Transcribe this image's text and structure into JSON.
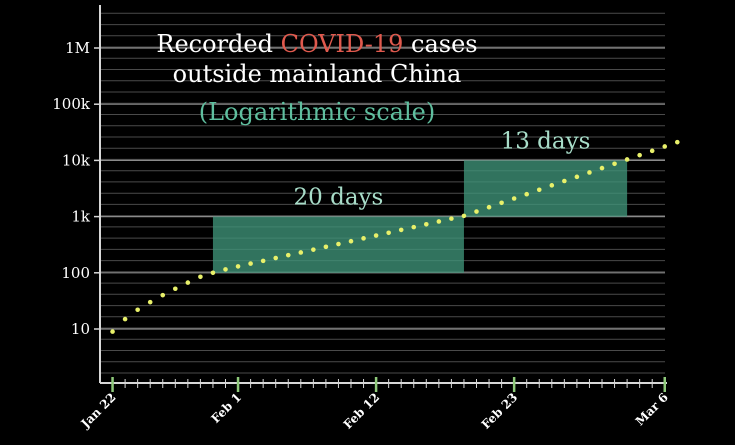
{
  "chart_data": {
    "type": "scatter",
    "title_parts": [
      {
        "text": "Recorded ",
        "color": "#ffffff",
        "line": 1
      },
      {
        "text": "COVID-19",
        "color": "#e05a4e",
        "line": 1
      },
      {
        "text": " cases",
        "color": "#ffffff",
        "line": 1
      },
      {
        "text": "outside mainland China",
        "color": "#ffffff",
        "line": 2
      },
      {
        "text": "(Logarithmic scale)",
        "color": "#5fbf9f",
        "line": 3
      }
    ],
    "y_scale": "log",
    "y_ticks": [
      {
        "value": 10,
        "label": "10"
      },
      {
        "value": 100,
        "label": "100"
      },
      {
        "value": 1000,
        "label": "1k"
      },
      {
        "value": 10000,
        "label": "10k"
      },
      {
        "value": 100000,
        "label": "100k"
      },
      {
        "value": 1000000,
        "label": "1M"
      }
    ],
    "x_date_ticks": [
      "Jan 22",
      "Feb 1",
      "Feb 12",
      "Feb 23",
      "Mar 6"
    ],
    "x_range": [
      "Jan 21",
      "Mar 6"
    ],
    "grid": true,
    "series": [
      {
        "color": "#e8f06a",
        "points": [
          [
            "Jan 22",
            9
          ],
          [
            "Jan 23",
            15
          ],
          [
            "Jan 24",
            22
          ],
          [
            "Jan 25",
            30
          ],
          [
            "Jan 26",
            40
          ],
          [
            "Jan 27",
            52
          ],
          [
            "Jan 28",
            67
          ],
          [
            "Jan 29",
            85
          ],
          [
            "Jan 30",
            100
          ],
          [
            "Jan 31",
            115
          ],
          [
            "Feb 1",
            130
          ],
          [
            "Feb 2",
            146
          ],
          [
            "Feb 3",
            163
          ],
          [
            "Feb 4",
            183
          ],
          [
            "Feb 5",
            206
          ],
          [
            "Feb 6",
            230
          ],
          [
            "Feb 7",
            258
          ],
          [
            "Feb 8",
            290
          ],
          [
            "Feb 9",
            325
          ],
          [
            "Feb 10",
            365
          ],
          [
            "Feb 11",
            410
          ],
          [
            "Feb 12",
            460
          ],
          [
            "Feb 13",
            515
          ],
          [
            "Feb 14",
            580
          ],
          [
            "Feb 15",
            650
          ],
          [
            "Feb 16",
            730
          ],
          [
            "Feb 17",
            820
          ],
          [
            "Feb 18",
            920
          ],
          [
            "Feb 19",
            1030
          ],
          [
            "Feb 20",
            1230
          ],
          [
            "Feb 21",
            1470
          ],
          [
            "Feb 22",
            1760
          ],
          [
            "Feb 23",
            2100
          ],
          [
            "Feb 24",
            2500
          ],
          [
            "Feb 25",
            3000
          ],
          [
            "Feb 26",
            3600
          ],
          [
            "Feb 27",
            4300
          ],
          [
            "Feb 28",
            5100
          ],
          [
            "Feb 29",
            6100
          ],
          [
            "Mar 1",
            7300
          ],
          [
            "Mar 2",
            8700
          ],
          [
            "Mar 3",
            10400
          ],
          [
            "Mar 4",
            12400
          ],
          [
            "Mar 5",
            14800
          ],
          [
            "Mar 6",
            17700
          ],
          [
            "Mar 7",
            21100
          ]
        ]
      }
    ],
    "highlight_boxes": [
      {
        "label": "20 days",
        "x_start": "Jan 30",
        "x_end": "Feb 19",
        "y_low": 100,
        "y_high": 1000,
        "color": "#3f9479"
      },
      {
        "label": "13 days",
        "x_start": "Feb 19",
        "x_end": "Mar 3",
        "y_low": 1000,
        "y_high": 10000,
        "color": "#3f9479"
      }
    ],
    "colors": {
      "background": "#000000",
      "axis": "#d8d8d8",
      "grid": "#4a4a4a",
      "x_tick": "#8ec97a",
      "box_label": "#a8ddc9"
    }
  }
}
